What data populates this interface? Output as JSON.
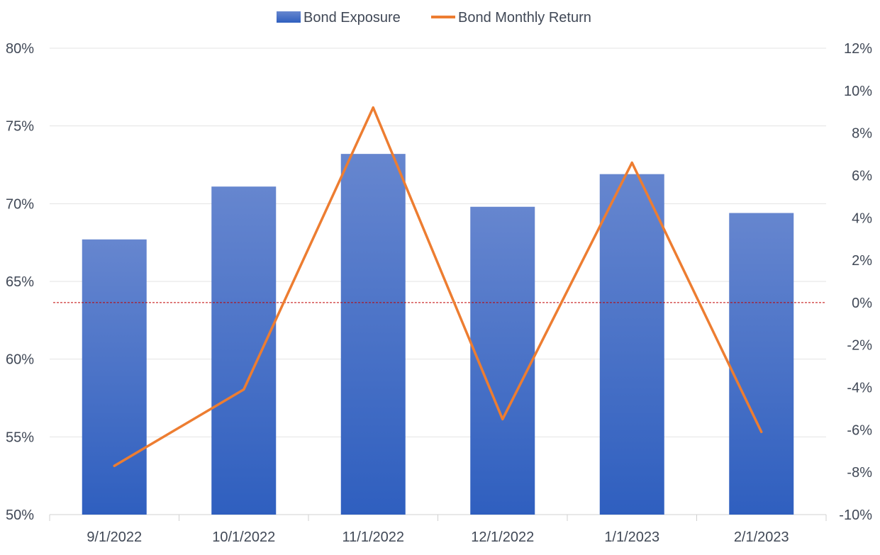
{
  "chart_data": {
    "type": "bar",
    "categories": [
      "9/1/2022",
      "10/1/2022",
      "11/1/2022",
      "12/1/2022",
      "1/1/2023",
      "2/1/2023"
    ],
    "series": [
      {
        "name": "Bond Exposure",
        "type": "bar",
        "axis": "left",
        "values": [
          67.7,
          71.1,
          73.2,
          69.8,
          71.9,
          69.4
        ]
      },
      {
        "name": "Bond Monthly Return",
        "type": "line",
        "axis": "right",
        "values": [
          -7.7,
          -4.1,
          9.2,
          -5.5,
          6.6,
          -6.1
        ]
      }
    ],
    "y_left": {
      "ylim": [
        50,
        80
      ],
      "ticks": [
        50,
        55,
        60,
        65,
        70,
        75,
        80
      ],
      "tick_labels": [
        "50%",
        "55%",
        "60%",
        "65%",
        "70%",
        "75%",
        "80%"
      ]
    },
    "y_right": {
      "ylim": [
        -10,
        12
      ],
      "ticks": [
        -10,
        -8,
        -6,
        -4,
        -2,
        0,
        2,
        4,
        6,
        8,
        10,
        12
      ],
      "tick_labels": [
        "-10%",
        "-8%",
        "-6%",
        "-4%",
        "-2%",
        "0%",
        "2%",
        "4%",
        "6%",
        "8%",
        "10%",
        "12%"
      ]
    },
    "zero_reference_line": {
      "axis": "right",
      "value": 0,
      "style": "dashed",
      "color": "#c00000"
    },
    "legend": {
      "placement": "top-center",
      "entries": [
        "Bond Exposure",
        "Bond Monthly Return"
      ]
    },
    "grid": true,
    "colors": {
      "bar_top": "#6686cf",
      "bar_bottom": "#2f5fbf",
      "line": "#ed7d31",
      "grid": "#e3e3e3",
      "axis_text": "#404856",
      "zero_line": "#c00000"
    }
  }
}
